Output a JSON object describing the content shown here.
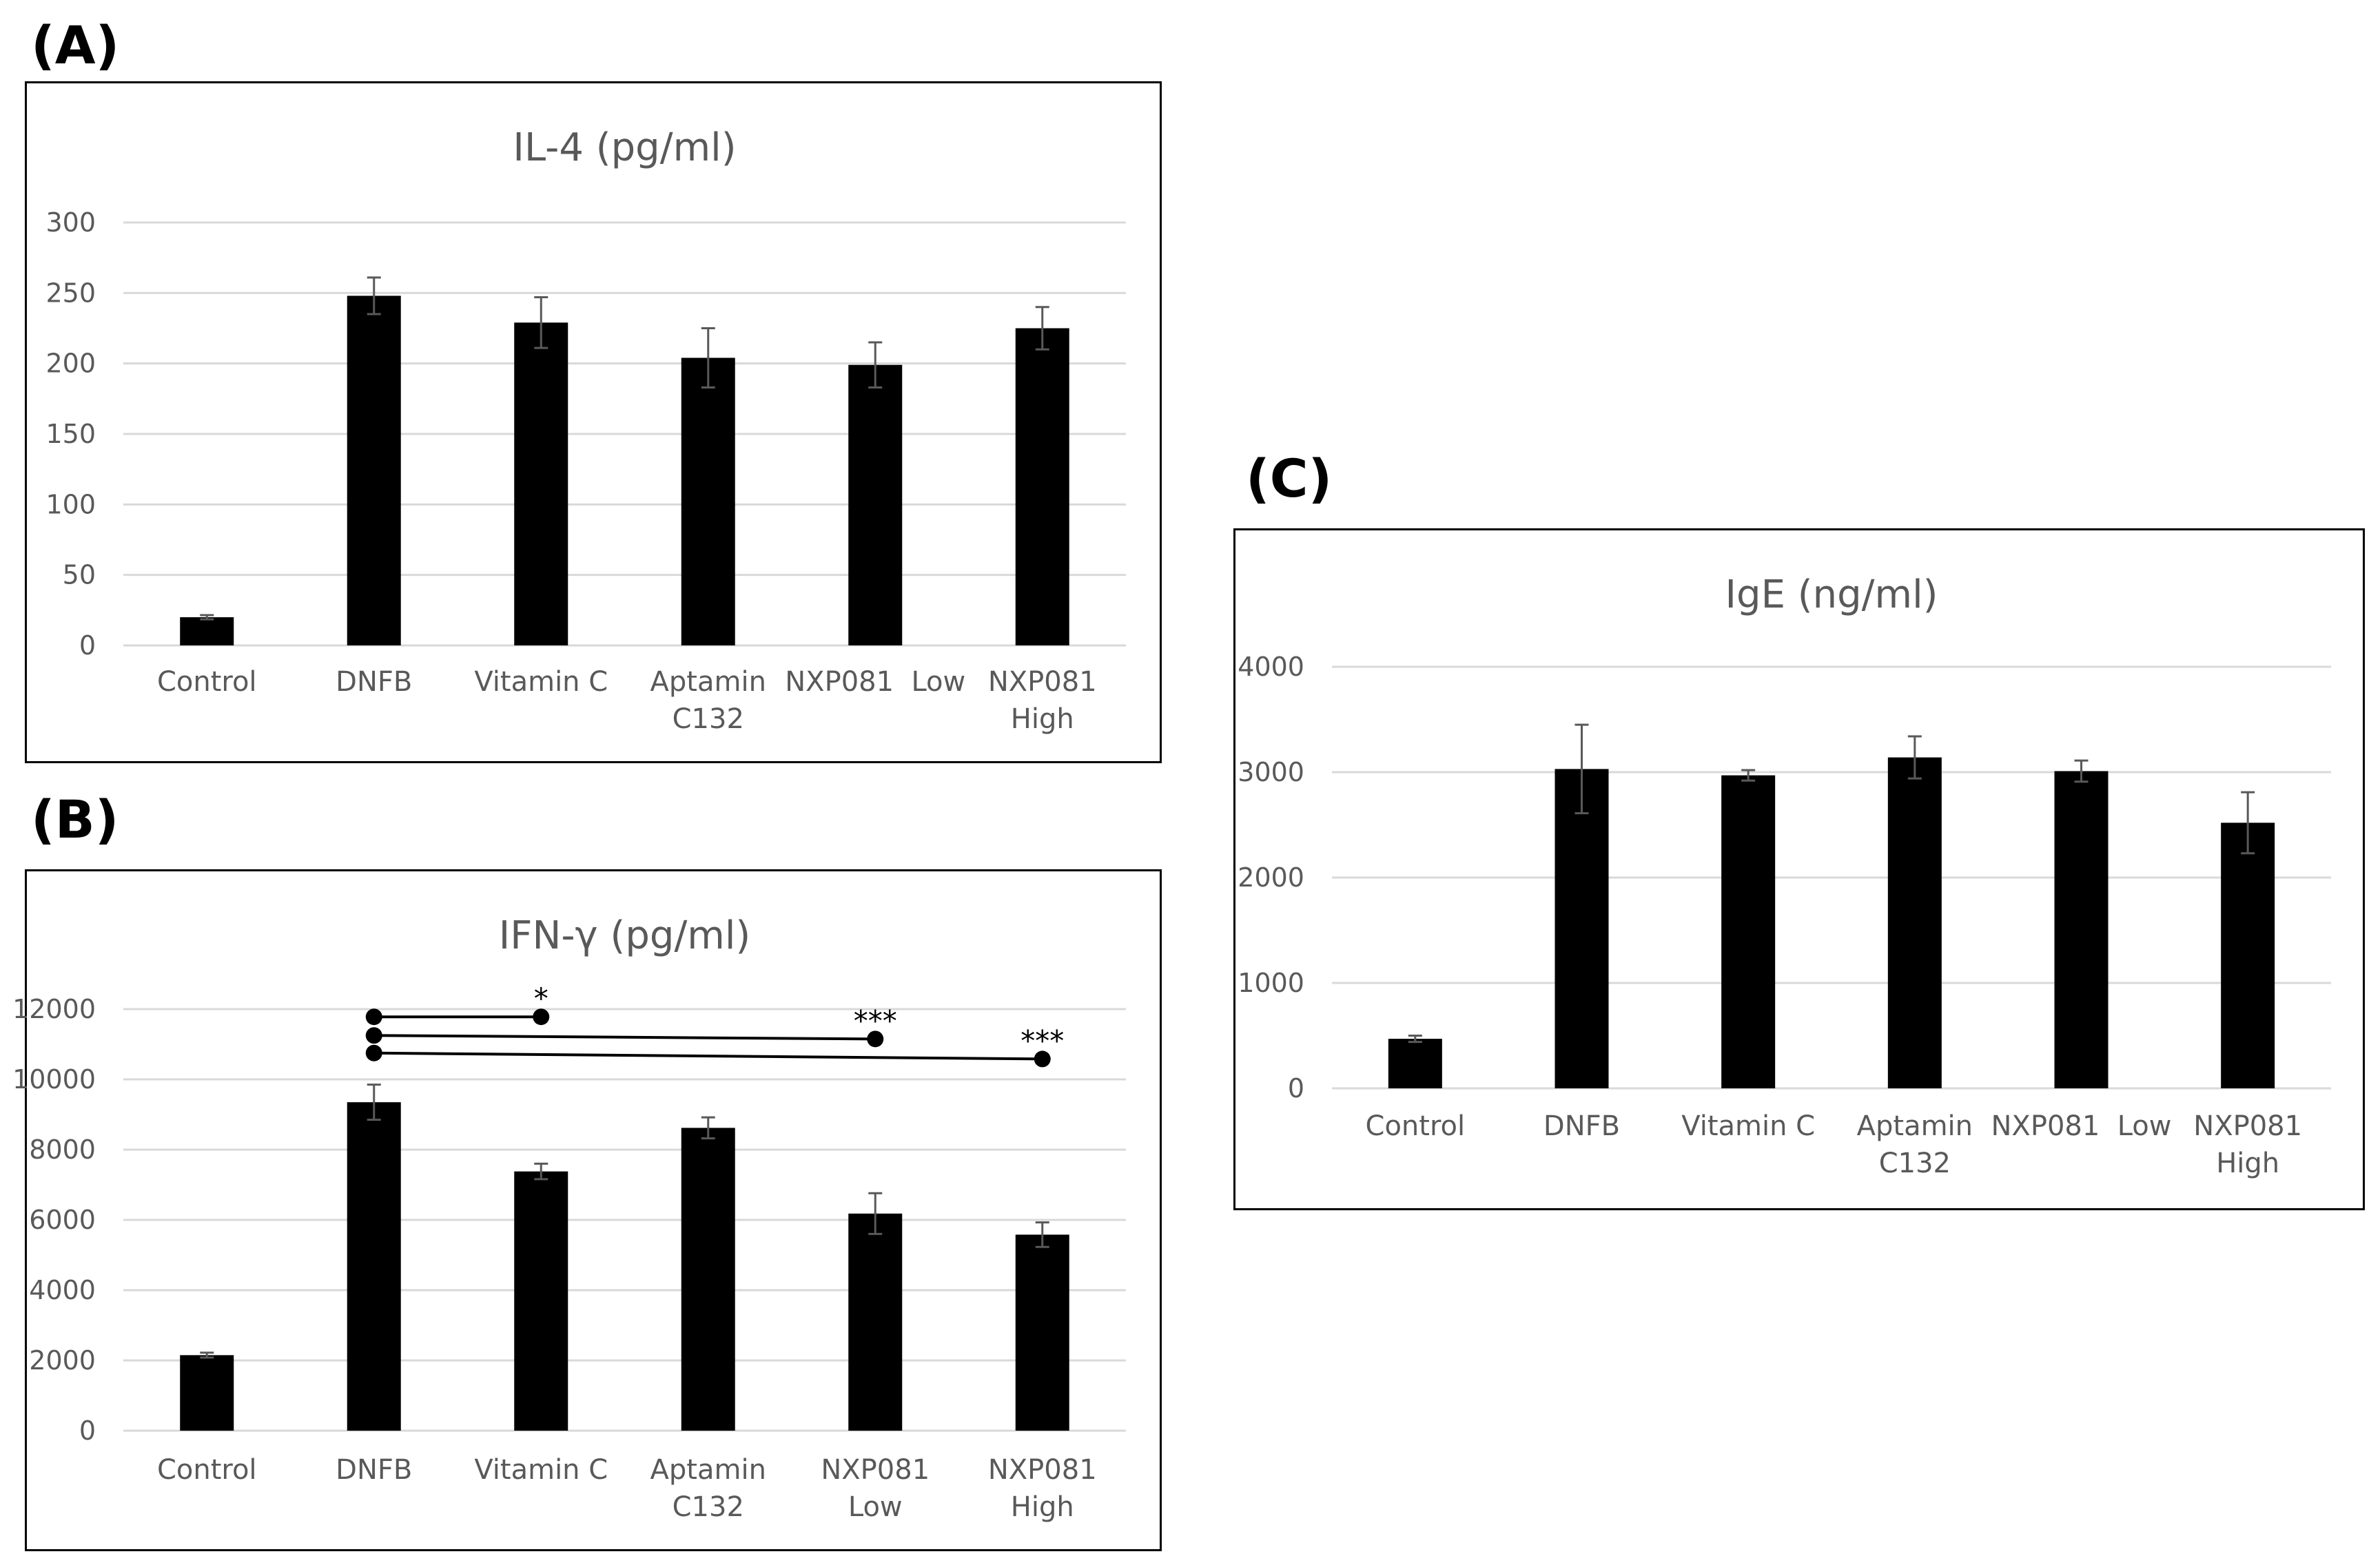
{
  "panels": {
    "a": "(A)",
    "b": "(B)",
    "c": "(C)"
  },
  "chart_data": [
    {
      "id": "a",
      "type": "bar",
      "title": "IL-4 (pg/ml)",
      "xlabel": "",
      "ylabel": "",
      "ylim": [
        0,
        300
      ],
      "yticks": [
        0,
        50,
        100,
        150,
        200,
        250,
        300
      ],
      "grid": true,
      "categories": [
        [
          "Control"
        ],
        [
          "DNFB"
        ],
        [
          "Vitamin C"
        ],
        [
          "Aptamin",
          "C132"
        ],
        [
          "NXP081  Low"
        ],
        [
          "NXP081",
          "High"
        ]
      ],
      "values": [
        20,
        248,
        229,
        204,
        199,
        225
      ],
      "errors": [
        1.5,
        13,
        18,
        21,
        16,
        15
      ],
      "bar_color": "#000000"
    },
    {
      "id": "b",
      "type": "bar",
      "title": "IFN-γ (pg/ml)",
      "xlabel": "",
      "ylabel": "",
      "ylim": [
        0,
        12000
      ],
      "yticks": [
        0,
        2000,
        4000,
        6000,
        8000,
        10000,
        12000
      ],
      "grid": true,
      "categories": [
        [
          "Control"
        ],
        [
          "DNFB"
        ],
        [
          "Vitamin C"
        ],
        [
          "Aptamin",
          "C132"
        ],
        [
          "NXP081",
          "Low"
        ],
        [
          "NXP081",
          "High"
        ]
      ],
      "values": [
        2150,
        9350,
        7380,
        8620,
        6180,
        5580
      ],
      "errors": [
        70,
        500,
        220,
        300,
        580,
        350
      ],
      "bar_color": "#000000",
      "significance": [
        {
          "from": 1,
          "to": 2,
          "y_start": 11780,
          "y_end": 11780,
          "label": "*"
        },
        {
          "from": 1,
          "to": 4,
          "y_start": 11250,
          "y_end": 11150,
          "label": "***"
        },
        {
          "from": 1,
          "to": 5,
          "y_start": 10750,
          "y_end": 10580,
          "label": "***"
        }
      ]
    },
    {
      "id": "c",
      "type": "bar",
      "title": "IgE (ng/ml)",
      "xlabel": "",
      "ylabel": "",
      "ylim": [
        0,
        4000
      ],
      "yticks": [
        0,
        1000,
        2000,
        3000,
        4000
      ],
      "grid": true,
      "categories": [
        [
          "Control"
        ],
        [
          "DNFB"
        ],
        [
          "Vitamin C"
        ],
        [
          "Aptamin",
          "C132"
        ],
        [
          "NXP081  Low"
        ],
        [
          "NXP081",
          "High"
        ]
      ],
      "values": [
        470,
        3030,
        2970,
        3140,
        3010,
        2520
      ],
      "errors": [
        30,
        420,
        50,
        200,
        100,
        290
      ],
      "bar_color": "#000000"
    }
  ]
}
